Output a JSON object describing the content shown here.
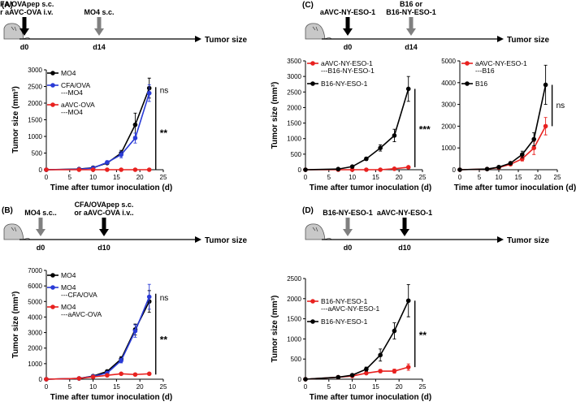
{
  "colors": {
    "black": "#000000",
    "blue": "#2a3bd6",
    "red": "#e8211f",
    "gray": "#808080",
    "mouse": "#c8c8c8"
  },
  "panels": [
    {
      "id": "A",
      "label": "(A)",
      "events": [
        {
          "text": [
            "CFA/OVApep s.c.",
            "or aAVC-OVA i.v."
          ],
          "day": "d0",
          "arrow_color": "black"
        },
        {
          "text": [
            "MO4 s.c."
          ],
          "day": "d14",
          "arrow_color": "gray"
        }
      ],
      "timeline_end": "Tumor size",
      "charts": [
        {
          "type": "line",
          "xlabel": "Time after tumor inoculation (d)",
          "ylabel": "Tumor size (mm³)",
          "xlim": [
            0,
            25
          ],
          "ylim": [
            0,
            3000
          ],
          "xticks": [
            0,
            5,
            10,
            15,
            20,
            25
          ],
          "yticks": [
            0,
            500,
            1000,
            1500,
            2000,
            2500,
            3000
          ],
          "x": [
            0,
            7,
            10,
            13,
            16,
            19,
            22
          ],
          "series": [
            {
              "name": "MO4",
              "legend": [
                "MO4"
              ],
              "color": "black",
              "values": [
                0,
                20,
                60,
                200,
                500,
                1350,
                2450
              ],
              "err": [
                0,
                10,
                15,
                40,
                80,
                350,
                300
              ]
            },
            {
              "name": "CFA/OVA---MO4",
              "legend": [
                "CFA/OVA",
                "---MO4"
              ],
              "color": "blue",
              "values": [
                0,
                15,
                50,
                220,
                450,
                950,
                2300
              ],
              "err": [
                0,
                10,
                15,
                50,
                90,
                150,
                250
              ]
            },
            {
              "name": "aAVC-OVA---MO4",
              "legend": [
                "aAVC-OVA",
                "---MO4"
              ],
              "color": "red",
              "values": [
                0,
                0,
                0,
                0,
                0,
                0,
                0
              ],
              "err": [
                0,
                0,
                0,
                0,
                0,
                0,
                0
              ]
            }
          ],
          "annotations": [
            {
              "text": "ns",
              "bracket": [
                2280,
                2480
              ]
            },
            {
              "text": "**",
              "bracket": [
                0,
                2300
              ]
            }
          ]
        }
      ]
    },
    {
      "id": "B",
      "label": "(B)",
      "events": [
        {
          "text": [
            "MO4 s.c.."
          ],
          "day": "d0",
          "arrow_color": "gray"
        },
        {
          "text": [
            "CFA/OVApep s.c.",
            "or aAVC-OVA i.v.."
          ],
          "day": "d10",
          "arrow_color": "black"
        }
      ],
      "timeline_end": "Tumor size",
      "charts": [
        {
          "type": "line",
          "xlabel": "Time after tumor inoculation (d)",
          "ylabel": "Tumor size (mm³)",
          "xlim": [
            0,
            25
          ],
          "ylim": [
            0,
            7000
          ],
          "xticks": [
            0,
            5,
            10,
            15,
            20,
            25
          ],
          "yticks": [
            0,
            1000,
            2000,
            3000,
            4000,
            5000,
            6000,
            7000
          ],
          "x": [
            0,
            7,
            10,
            13,
            16,
            19,
            22
          ],
          "series": [
            {
              "name": "MO4",
              "legend": [
                "MO4"
              ],
              "color": "black",
              "values": [
                0,
                50,
                200,
                500,
                1300,
                3200,
                5000
              ],
              "err": [
                0,
                20,
                50,
                100,
                150,
                350,
                700
              ]
            },
            {
              "name": "MO4---CFA/OVA",
              "legend": [
                "MO4",
                "---CFA/OVA"
              ],
              "color": "blue",
              "values": [
                0,
                50,
                180,
                400,
                1200,
                3100,
                5300
              ],
              "err": [
                0,
                20,
                50,
                100,
                150,
                400,
                800
              ]
            },
            {
              "name": "MO4---aAVC-OVA",
              "legend": [
                "MO4",
                "---aAVC-OVA"
              ],
              "color": "red",
              "values": [
                0,
                50,
                150,
                250,
                350,
                300,
                350
              ],
              "err": [
                0,
                10,
                30,
                50,
                50,
                50,
                80
              ]
            }
          ],
          "annotations": [
            {
              "text": "ns",
              "bracket": [
                4950,
                5500
              ]
            },
            {
              "text": "**",
              "bracket": [
                300,
                5000
              ]
            }
          ]
        }
      ]
    },
    {
      "id": "C",
      "label": "(C)",
      "events": [
        {
          "text": [
            "aAVC-NY-ESO-1"
          ],
          "day": "d0",
          "arrow_color": "black"
        },
        {
          "text": [
            "B16 or",
            "B16-NY-ESO-1"
          ],
          "day": "d14",
          "arrow_color": "gray"
        }
      ],
      "timeline_end": "Tumor size",
      "charts": [
        {
          "type": "line",
          "xlabel": "Time after tumor inoculation (d)",
          "ylabel": "Tumor size (mm³)",
          "xlim": [
            0,
            25
          ],
          "ylim": [
            0,
            3500
          ],
          "xticks": [
            0,
            5,
            10,
            15,
            20,
            25
          ],
          "yticks": [
            0,
            500,
            1000,
            1500,
            2000,
            2500,
            3000,
            3500
          ],
          "x": [
            0,
            7,
            10,
            13,
            16,
            19,
            22
          ],
          "series": [
            {
              "name": "aAVC-NY-ESO-1---B16-NY-ESO-1",
              "legend": [
                "aAVC-NY-ESO-1",
                "---B16-NY-ESO-1"
              ],
              "color": "red",
              "values": [
                0,
                0,
                0,
                0,
                0,
                30,
                80
              ],
              "err": [
                0,
                0,
                0,
                0,
                0,
                10,
                30
              ]
            },
            {
              "name": "B16-NY-ESO-1",
              "legend": [
                "B16-NY-ESO-1"
              ],
              "color": "black",
              "values": [
                0,
                20,
                100,
                350,
                700,
                1100,
                2600
              ],
              "err": [
                0,
                10,
                30,
                50,
                100,
                200,
                400
              ]
            }
          ],
          "annotations": [
            {
              "text": "***",
              "bracket": [
                80,
                2600
              ]
            }
          ]
        },
        {
          "type": "line",
          "xlabel": "Time after tumor inoculation (d)",
          "ylabel": "",
          "xlim": [
            0,
            25
          ],
          "ylim": [
            0,
            5000
          ],
          "xticks": [
            0,
            5,
            10,
            15,
            20,
            25
          ],
          "yticks": [
            0,
            1000,
            2000,
            3000,
            4000,
            5000
          ],
          "x": [
            0,
            7,
            10,
            13,
            16,
            19,
            22
          ],
          "series": [
            {
              "name": "aAVC-NY-ESO-1---B16",
              "legend": [
                "aAVC-NY-ESO-1",
                "---B16"
              ],
              "color": "red",
              "values": [
                0,
                30,
                100,
                250,
                500,
                1000,
                2000
              ],
              "err": [
                0,
                10,
                30,
                50,
                100,
                300,
                400
              ]
            },
            {
              "name": "B16",
              "legend": [
                "B16"
              ],
              "color": "black",
              "values": [
                0,
                30,
                120,
                300,
                700,
                1400,
                3900
              ],
              "err": [
                0,
                10,
                30,
                50,
                150,
                300,
                900
              ]
            }
          ],
          "annotations": [
            {
              "text": "ns",
              "bracket": [
                2000,
                3900
              ]
            }
          ]
        }
      ]
    },
    {
      "id": "D",
      "label": "(D)",
      "events": [
        {
          "text": [
            "B16-NY-ESO-1"
          ],
          "day": "d0",
          "arrow_color": "gray"
        },
        {
          "text": [
            "aAVC-NY-ESO-1"
          ],
          "day": "d10",
          "arrow_color": "black"
        }
      ],
      "timeline_end": "Tumor size",
      "charts": [
        {
          "type": "line",
          "xlabel": "Time after tumor inoculation (d)",
          "ylabel": "Tumor size (mm³)",
          "xlim": [
            0,
            25
          ],
          "ylim": [
            0,
            2500
          ],
          "xticks": [
            0,
            5,
            10,
            15,
            20,
            25
          ],
          "yticks": [
            0,
            500,
            1000,
            1500,
            2000,
            2500
          ],
          "x": [
            0,
            7,
            10,
            13,
            16,
            19,
            22
          ],
          "series": [
            {
              "name": "B16-NY-ESO-1---aAVC-NY-ESO-1",
              "legend": [
                "B16-NY-ESO-1",
                "---aAVC-NY-ESO-1"
              ],
              "color": "red",
              "values": [
                0,
                50,
                80,
                150,
                200,
                200,
                300
              ],
              "err": [
                0,
                10,
                20,
                30,
                40,
                50,
                80
              ]
            },
            {
              "name": "B16-NY-ESO-1",
              "legend": [
                "B16-NY-ESO-1"
              ],
              "color": "black",
              "values": [
                0,
                50,
                100,
                250,
                600,
                1200,
                1950
              ],
              "err": [
                0,
                10,
                20,
                50,
                150,
                200,
                400
              ]
            }
          ],
          "annotations": [
            {
              "text": "**",
              "bracket": [
                300,
                1950
              ]
            }
          ]
        }
      ]
    }
  ]
}
